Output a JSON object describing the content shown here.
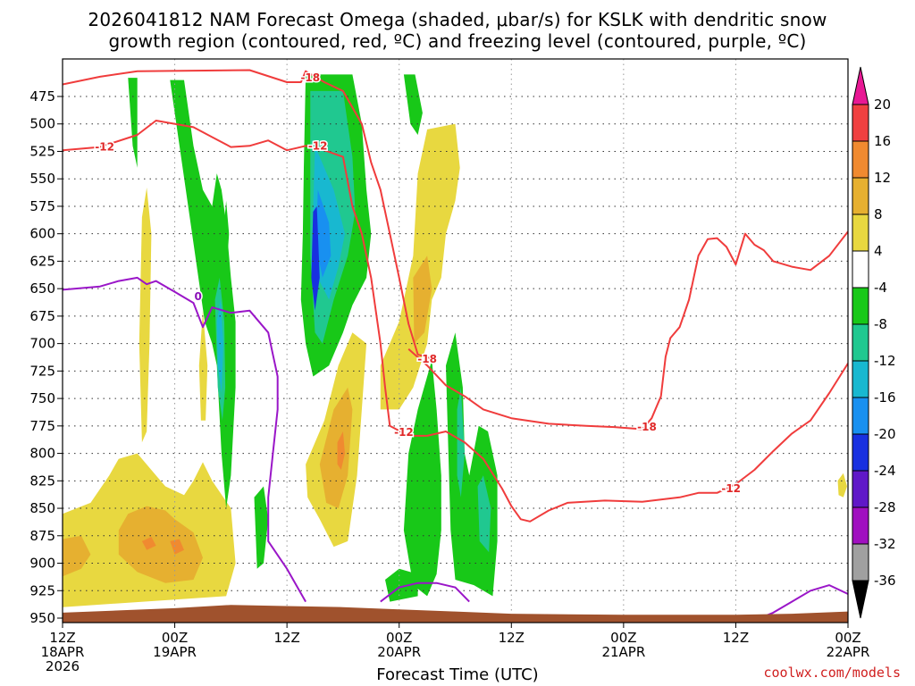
{
  "title_line1": "2026041812 NAM Forecast Omega (shaded, μbar/s) for KSLK with dendritic snow",
  "title_line2": "growth region (contoured, red, ºC) and freezing level (contoured, purple, ºC)",
  "xlabel": "Forecast Time (UTC)",
  "watermark": "coolwx.com/models",
  "chart_data": {
    "type": "heatmap",
    "x_ticks": [
      {
        "hour": 0,
        "line1": "12Z",
        "line2": "18APR",
        "line3": "2026"
      },
      {
        "hour": 12,
        "line1": "00Z",
        "line2": "19APR",
        "line3": ""
      },
      {
        "hour": 24,
        "line1": "12Z",
        "line2": "",
        "line3": ""
      },
      {
        "hour": 36,
        "line1": "00Z",
        "line2": "20APR",
        "line3": ""
      },
      {
        "hour": 48,
        "line1": "12Z",
        "line2": "",
        "line3": ""
      },
      {
        "hour": 60,
        "line1": "00Z",
        "line2": "21APR",
        "line3": ""
      },
      {
        "hour": 72,
        "line1": "12Z",
        "line2": "",
        "line3": ""
      },
      {
        "hour": 84,
        "line1": "00Z",
        "line2": "22APR",
        "line3": ""
      }
    ],
    "x_range_hours": [
      0,
      84
    ],
    "y_ticks": [
      475,
      500,
      525,
      550,
      575,
      600,
      625,
      650,
      675,
      700,
      725,
      750,
      775,
      800,
      825,
      850,
      875,
      900,
      925,
      950
    ],
    "y_range_mb": [
      450,
      960
    ],
    "colorbar": {
      "levels": [
        20,
        16,
        12,
        8,
        4,
        -4,
        -8,
        -12,
        -16,
        -20,
        -24,
        -28,
        -32,
        -36
      ],
      "colors": [
        "#e81894",
        "#f04040",
        "#f08a30",
        "#e6b030",
        "#e8d840",
        "#ffffff",
        "#18c818",
        "#20c890",
        "#18b8d0",
        "#1890f0",
        "#1830e0",
        "#6018c8",
        "#a010c0",
        "#a0a0a0",
        "#000000"
      ]
    },
    "red_contours": [
      {
        "label": "-18",
        "points": [
          [
            0,
            464
          ],
          [
            4,
            457
          ],
          [
            8,
            452
          ],
          [
            20,
            451
          ],
          [
            24,
            462
          ],
          [
            25.5,
            462
          ],
          [
            26,
            452
          ],
          [
            28,
            462
          ],
          [
            30,
            470
          ],
          [
            32,
            500
          ],
          [
            33,
            535
          ],
          [
            34,
            560
          ],
          [
            35,
            600
          ],
          [
            36,
            640
          ],
          [
            37,
            682
          ],
          [
            38,
            710
          ],
          [
            40,
            715
          ]
        ]
      },
      {
        "label": "-12",
        "points": [
          [
            0,
            524
          ],
          [
            4,
            521
          ],
          [
            8,
            510
          ],
          [
            10,
            497
          ],
          [
            14,
            503
          ],
          [
            16,
            512
          ],
          [
            18,
            521
          ],
          [
            20,
            520
          ],
          [
            22,
            515
          ],
          [
            24,
            524
          ],
          [
            25,
            522
          ],
          [
            26,
            520
          ],
          [
            28,
            524
          ],
          [
            30,
            530
          ],
          [
            31,
            575
          ],
          [
            32,
            600
          ],
          [
            33,
            640
          ],
          [
            34,
            700
          ],
          [
            34.5,
            740
          ],
          [
            35,
            775
          ],
          [
            37,
            784
          ],
          [
            39,
            784
          ],
          [
            41,
            780
          ],
          [
            43,
            790
          ],
          [
            45,
            805
          ],
          [
            47,
            832
          ],
          [
            48,
            848
          ],
          [
            49,
            860
          ],
          [
            50,
            862
          ],
          [
            52,
            852
          ],
          [
            54,
            845
          ],
          [
            58,
            843
          ],
          [
            62,
            844
          ],
          [
            66,
            840
          ],
          [
            68,
            836
          ],
          [
            70,
            836
          ],
          [
            72,
            828
          ],
          [
            74,
            815
          ],
          [
            76,
            798
          ],
          [
            78,
            782
          ],
          [
            80,
            770
          ],
          [
            82,
            745
          ],
          [
            84,
            718
          ]
        ]
      },
      {
        "label": "-18",
        "points": [
          [
            37,
            705
          ],
          [
            39,
            720
          ],
          [
            41,
            738
          ],
          [
            43,
            748
          ],
          [
            45,
            760
          ],
          [
            48,
            768
          ],
          [
            52,
            773
          ],
          [
            56,
            775
          ],
          [
            59,
            776
          ],
          [
            62,
            778
          ],
          [
            63,
            768
          ],
          [
            64,
            748
          ],
          [
            64.5,
            712
          ],
          [
            65,
            695
          ],
          [
            66,
            685
          ],
          [
            67,
            660
          ],
          [
            68,
            620
          ],
          [
            69,
            605
          ],
          [
            70,
            604
          ],
          [
            71,
            612
          ],
          [
            72,
            628
          ],
          [
            73,
            600
          ],
          [
            74,
            610
          ],
          [
            75,
            615
          ],
          [
            76,
            625
          ],
          [
            78,
            630
          ],
          [
            80,
            633
          ],
          [
            82,
            620
          ],
          [
            84,
            598
          ]
        ]
      }
    ],
    "purple_contours": [
      {
        "label": "0",
        "points": [
          [
            0,
            651
          ],
          [
            4,
            648
          ],
          [
            6,
            643
          ],
          [
            8,
            640
          ],
          [
            9,
            646
          ],
          [
            10,
            643
          ],
          [
            12,
            653
          ],
          [
            14,
            663
          ],
          [
            15,
            685
          ],
          [
            16,
            667
          ],
          [
            18,
            672
          ],
          [
            20,
            670
          ],
          [
            22,
            690
          ],
          [
            22.5,
            710
          ],
          [
            23,
            730
          ],
          [
            23,
            760
          ],
          [
            22.5,
            800
          ],
          [
            22,
            840
          ],
          [
            22,
            880
          ],
          [
            24,
            905
          ],
          [
            26,
            935
          ]
        ]
      },
      {
        "label": "",
        "points": [
          [
            34,
            935
          ],
          [
            36,
            922
          ],
          [
            38,
            918
          ],
          [
            40,
            918
          ],
          [
            42,
            922
          ],
          [
            43.5,
            935
          ]
        ]
      },
      {
        "label": "",
        "points": [
          [
            74,
            952
          ],
          [
            76,
            945
          ],
          [
            78,
            935
          ],
          [
            80,
            925
          ],
          [
            82,
            920
          ],
          [
            84,
            928
          ]
        ]
      }
    ],
    "topography_mb": 942
  }
}
